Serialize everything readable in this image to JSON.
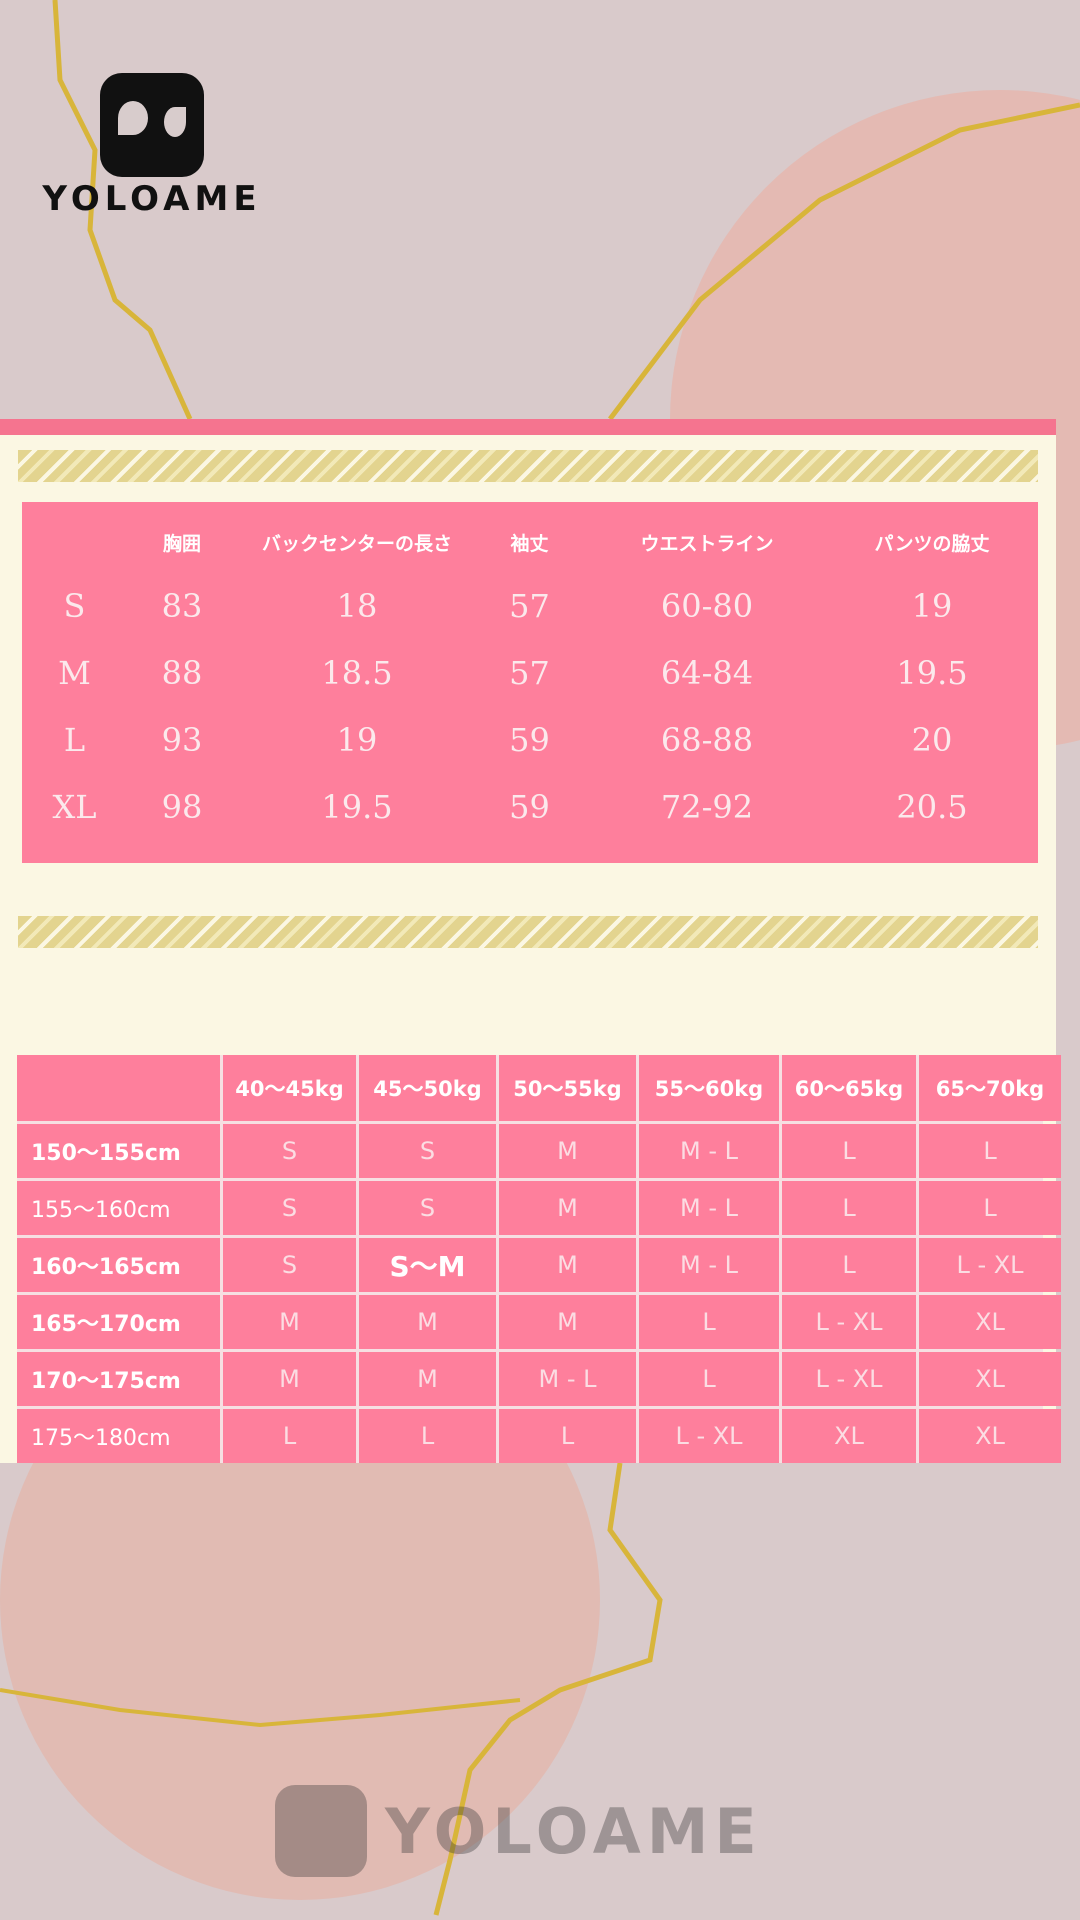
{
  "brand": {
    "name": "YOLOAME",
    "watermark": "YOLOAME"
  },
  "colors": {
    "table_pink": "#fe7f9c",
    "panel": "#fbf7e3",
    "gold": "#d8b53a"
  },
  "size_table": {
    "headers": [
      "",
      "胸囲",
      "バックセンターの長さ",
      "袖丈",
      "ウエストライン",
      "パンツの脇丈"
    ],
    "rows": [
      [
        "S",
        "83",
        "18",
        "57",
        "60-80",
        "19"
      ],
      [
        "M",
        "88",
        "18.5",
        "57",
        "64-84",
        "19.5"
      ],
      [
        "L",
        "93",
        "19",
        "59",
        "68-88",
        "20"
      ],
      [
        "XL",
        "98",
        "19.5",
        "59",
        "72-92",
        "20.5"
      ]
    ]
  },
  "fit_table": {
    "headers": [
      "",
      "40～45kg",
      "45～50kg",
      "50～55kg",
      "55～60kg",
      "60～65kg",
      "65～70kg"
    ],
    "rows": [
      [
        "150～155cm",
        "S",
        "S",
        "M",
        "M - L",
        "L",
        "L"
      ],
      [
        "155～160cm",
        "S",
        "S",
        "M",
        "M - L",
        "L",
        "L"
      ],
      [
        "160～165cm",
        "S",
        "S～M",
        "M",
        "M - L",
        "L",
        "L - XL"
      ],
      [
        "165～170cm",
        "M",
        "M",
        "M",
        "L",
        "L - XL",
        "XL"
      ],
      [
        "170～175cm",
        "M",
        "M",
        "M - L",
        "L",
        "L - XL",
        "XL"
      ],
      [
        "175～180cm",
        "L",
        "L",
        "L",
        "L - XL",
        "XL",
        "XL"
      ]
    ]
  }
}
